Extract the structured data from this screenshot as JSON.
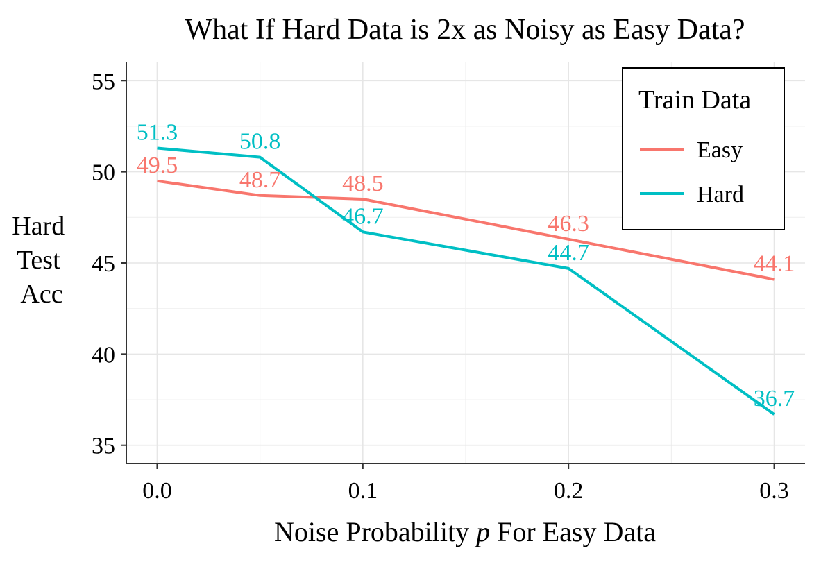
{
  "chart_data": {
    "type": "line",
    "title": "What If Hard Data is 2x as Noisy as Easy Data?",
    "xlabel_prefix": "Noise Probability ",
    "xlabel_var": "p",
    "xlabel_suffix": " For Easy Data",
    "ylabel": [
      "Hard",
      "Test",
      "Acc"
    ],
    "xlim": [
      -0.015,
      0.315
    ],
    "ylim": [
      34.0,
      56.0
    ],
    "x_ticks": [
      0.0,
      0.1,
      0.2,
      0.3
    ],
    "x_tick_labels": [
      "0.0",
      "0.1",
      "0.2",
      "0.3"
    ],
    "x_minor_ticks": [
      0.05,
      0.15,
      0.25
    ],
    "y_ticks": [
      35,
      40,
      45,
      50,
      55
    ],
    "y_tick_labels": [
      "35",
      "40",
      "45",
      "50",
      "55"
    ],
    "y_minor_ticks": [
      37.5,
      42.5,
      47.5,
      52.5
    ],
    "grid": true,
    "legend_title": "Train Data",
    "legend_position": "top-right",
    "x": [
      0.0,
      0.05,
      0.1,
      0.2,
      0.3
    ],
    "series": [
      {
        "name": "Easy",
        "color": "#F8766D",
        "values": [
          49.5,
          48.7,
          48.5,
          46.3,
          44.1
        ],
        "labels": [
          "49.5",
          "48.7",
          "48.5",
          "46.3",
          "44.1"
        ]
      },
      {
        "name": "Hard",
        "color": "#00BFC4",
        "values": [
          51.3,
          50.8,
          46.7,
          44.7,
          36.7
        ],
        "labels": [
          "51.3",
          "50.8",
          "46.7",
          "44.7",
          "36.7"
        ]
      }
    ]
  }
}
